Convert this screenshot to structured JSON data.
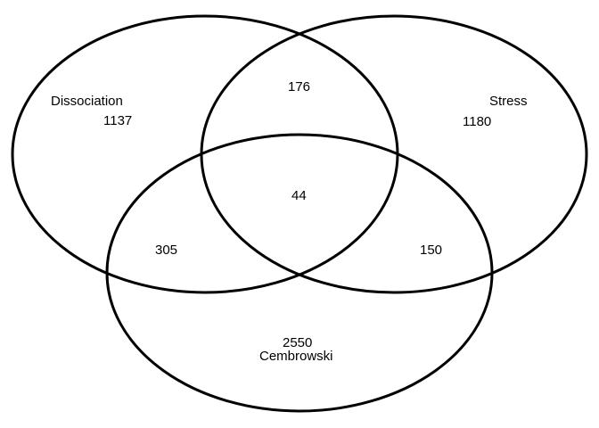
{
  "chart_data": {
    "type": "venn",
    "sets": [
      {
        "id": "dissociation",
        "name": "Dissociation",
        "only": "1137"
      },
      {
        "id": "stress",
        "name": "Stress",
        "only": "1180"
      },
      {
        "id": "cembrowski",
        "name": "Cembrowski",
        "only": "2550"
      }
    ],
    "intersections": {
      "dissociation_stress": "176",
      "dissociation_cembrowski": "305",
      "stress_cembrowski": "150",
      "all_three": "44"
    }
  },
  "colors": {
    "stroke": "#000000",
    "background": "#ffffff"
  }
}
